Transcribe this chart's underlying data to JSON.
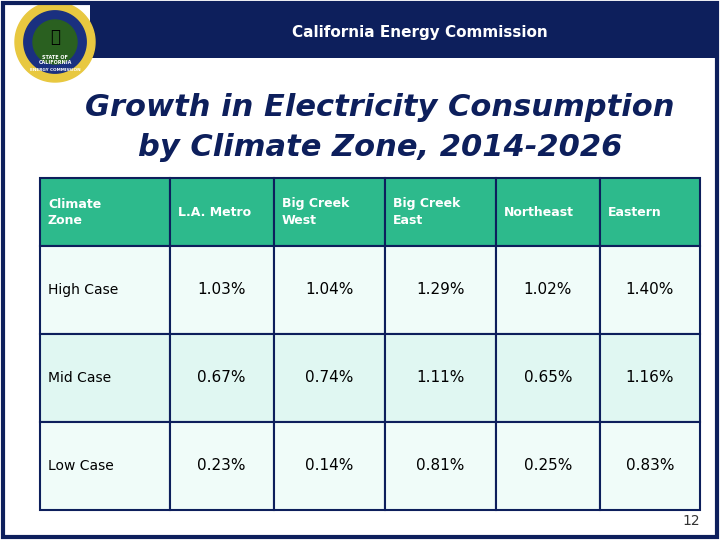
{
  "header_text": "California Energy Commission",
  "title_line1": "Growth in Electricity Consumption",
  "title_line2": "by Climate Zone, 2014-2026",
  "col_headers": [
    "Climate\nZone",
    "L.A. Metro",
    "Big Creek\nWest",
    "Big Creek\nEast",
    "Northeast",
    "Eastern"
  ],
  "row_labels": [
    "High Case",
    "Mid Case",
    "Low Case"
  ],
  "data": [
    [
      "1.03%",
      "1.04%",
      "1.29%",
      "1.02%",
      "1.40%"
    ],
    [
      "0.67%",
      "0.74%",
      "1.11%",
      "0.65%",
      "1.16%"
    ],
    [
      "0.23%",
      "0.14%",
      "0.81%",
      "0.25%",
      "0.83%"
    ]
  ],
  "slide_bg": "#ffffff",
  "header_bar_color": "#0d1f5c",
  "header_text_color": "#ffffff",
  "title_color": "#0d1f5c",
  "table_header_bg": "#2dba8c",
  "table_header_text": "#ffffff",
  "table_row_bg_light": "#e0f7f2",
  "table_row_bg_lighter": "#f0fcf9",
  "table_text_color": "#000000",
  "border_color": "#0d1f5c",
  "page_num": "12",
  "outer_border_color": "#0d1f5c"
}
